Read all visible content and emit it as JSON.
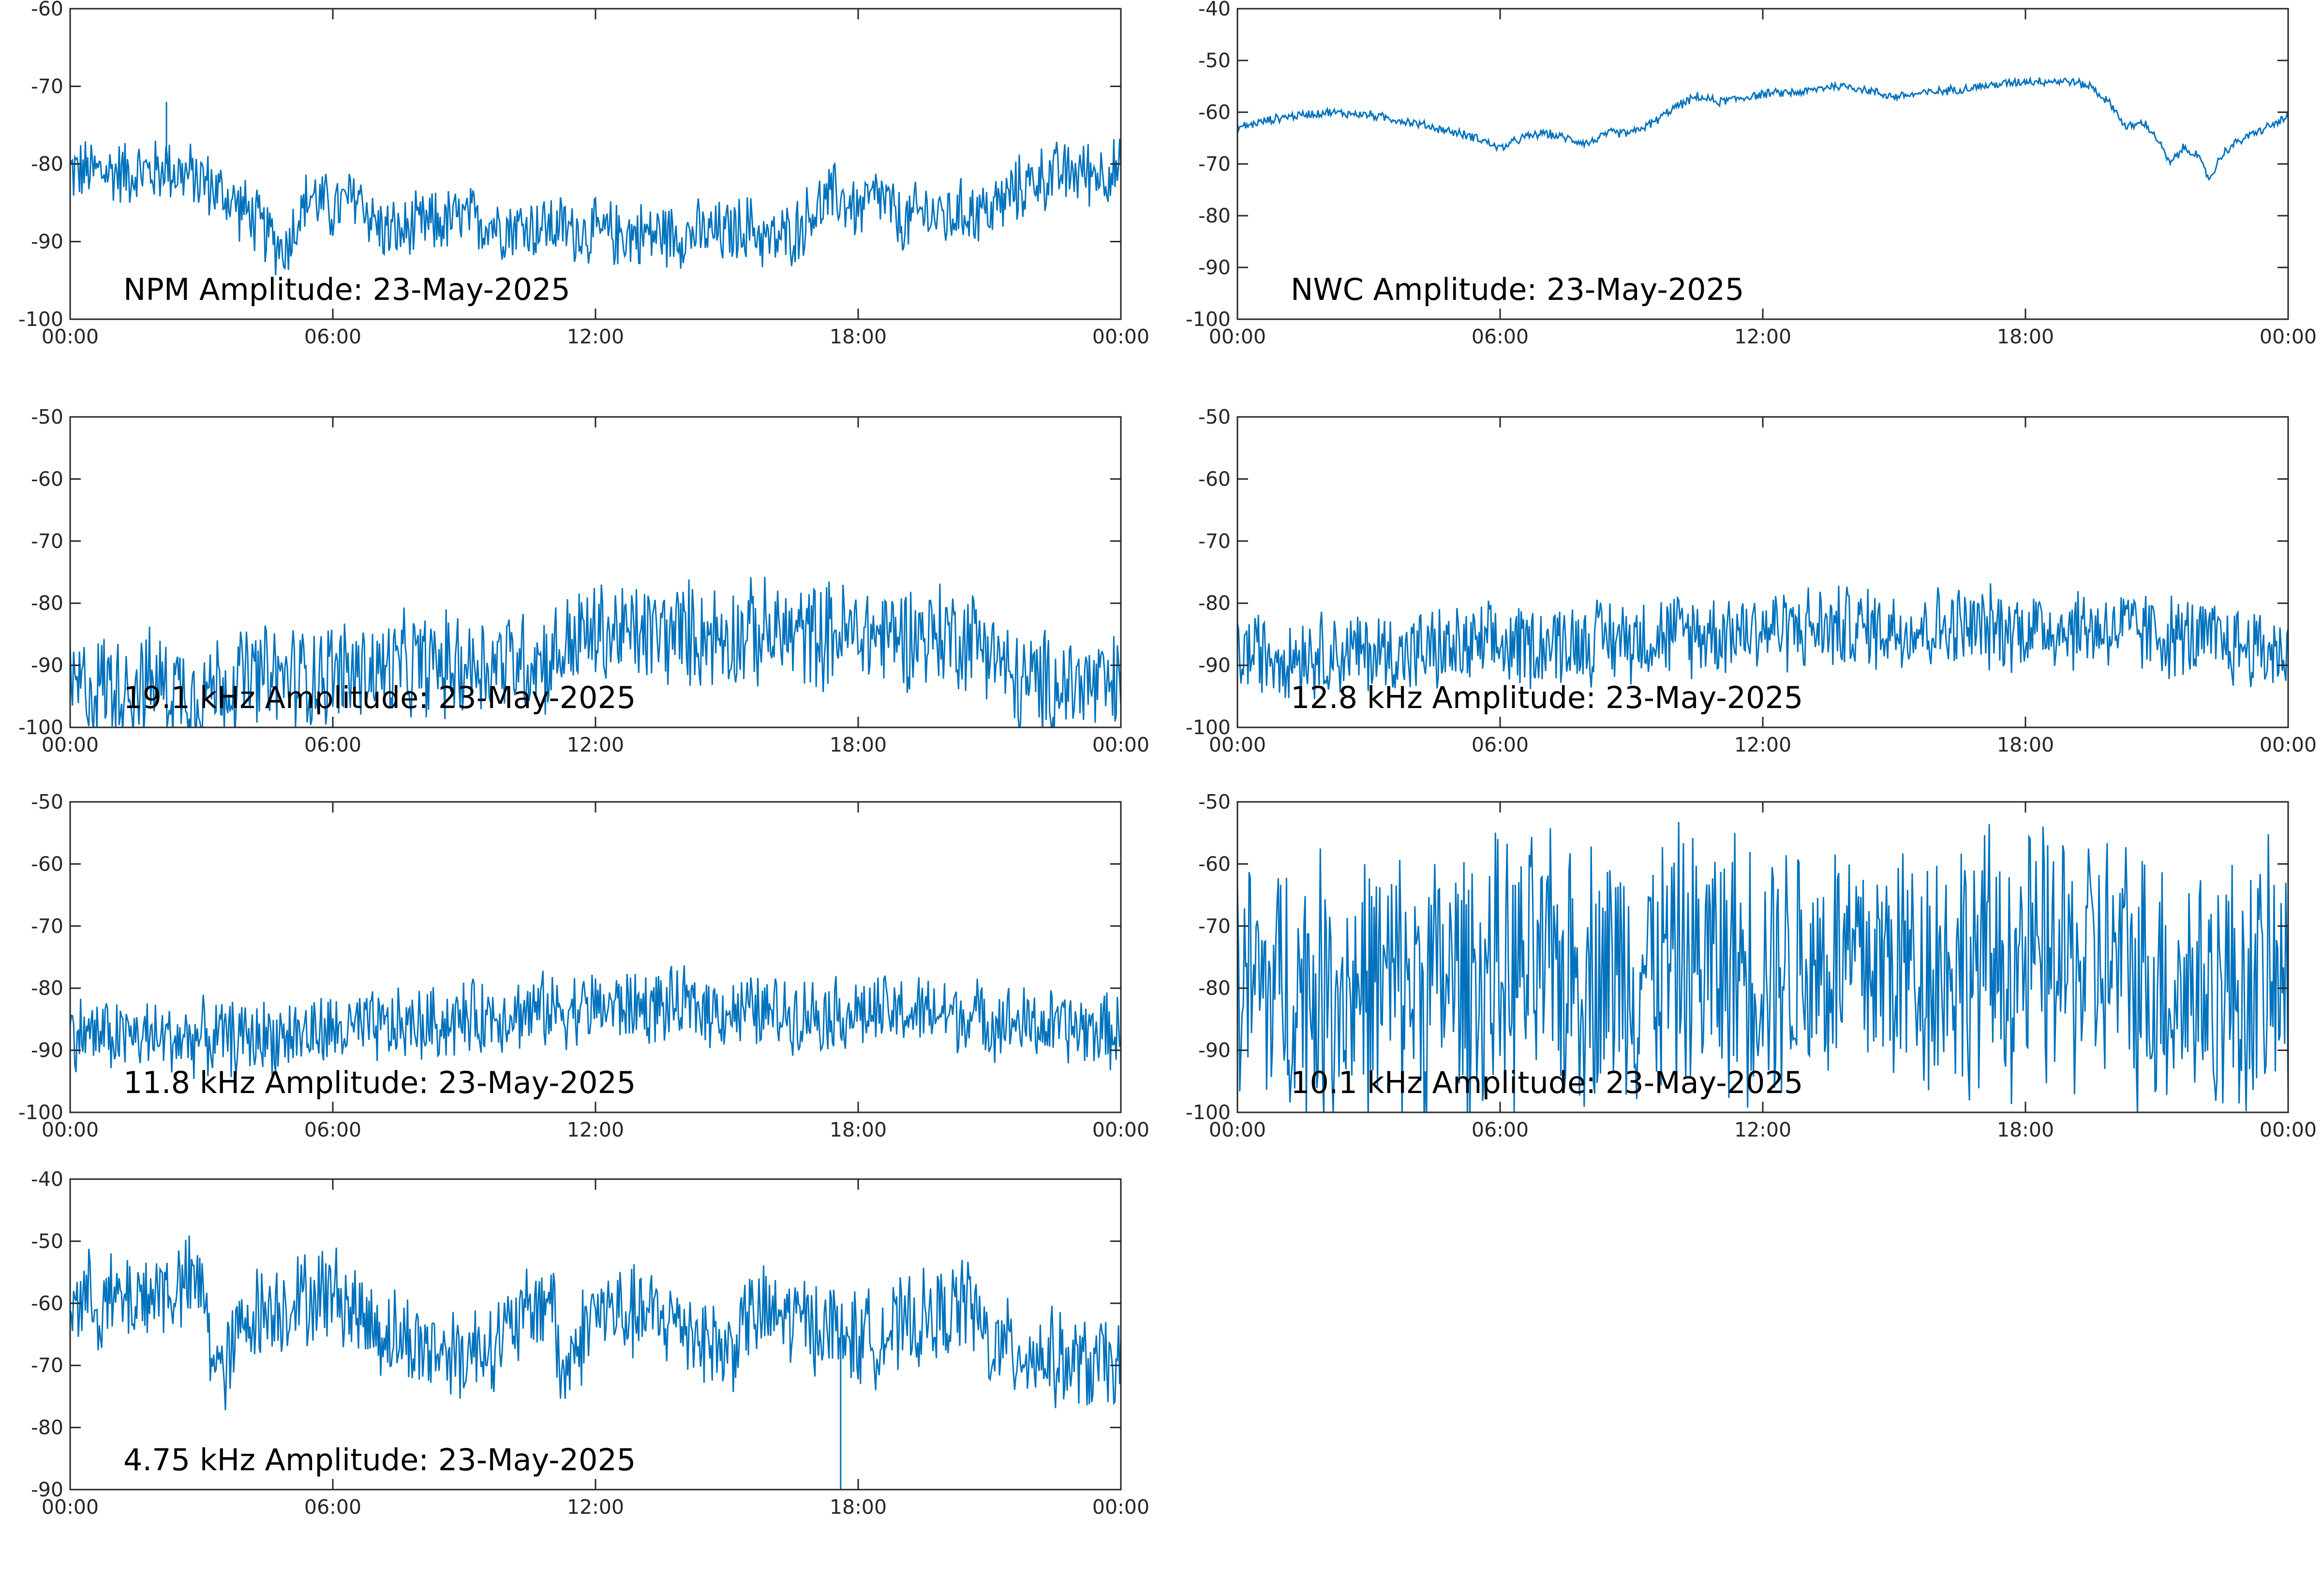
{
  "colors": {
    "line": "#0072BD",
    "axes": "#262626",
    "background": "#ffffff"
  },
  "chart_data": [
    {
      "type": "line",
      "annotation": "NPM Amplitude: 23-May-2025",
      "ylim": [
        -100,
        -60
      ],
      "yticks": [
        "-60",
        "-70",
        "-80",
        "-90",
        "-100"
      ],
      "xlim": [
        "00:00",
        "24:00"
      ],
      "xticks": [
        "00:00",
        "06:00",
        "12:00",
        "18:00",
        "00:00"
      ],
      "grid": false,
      "series": [
        {
          "x": [
            0,
            1,
            2,
            2.2,
            2.4,
            3,
            4,
            4.5,
            4.9,
            5.2,
            5.5,
            6,
            6.3,
            6.6,
            7,
            7.5,
            8,
            9,
            10,
            11,
            12,
            13,
            14,
            15,
            15.5,
            16,
            16.5,
            17,
            17.5,
            18,
            18.5,
            19,
            19.5,
            20,
            20.5,
            21,
            21.5,
            22,
            23,
            24
          ],
          "y": [
            -81,
            -81,
            -81,
            -80,
            -81,
            -82,
            -86,
            -89,
            -91,
            -87,
            -84,
            -86,
            -85,
            -84,
            -88,
            -89,
            -88,
            -87,
            -88,
            -88,
            -89,
            -89,
            -89,
            -89,
            -88,
            -90,
            -89,
            -86,
            -84,
            -86,
            -84,
            -88,
            -86,
            -87,
            -86,
            -86,
            -84,
            -82,
            -81,
            -81
          ],
          "noise": 5,
          "spikes": [
            {
              "x": 2.2,
              "y": -72
            }
          ]
        }
      ]
    },
    {
      "type": "line",
      "annotation": "NWC Amplitude: 23-May-2025",
      "ylim": [
        -100,
        -40
      ],
      "yticks": [
        "-40",
        "-50",
        "-60",
        "-70",
        "-80",
        "-90",
        "-100"
      ],
      "xlim": [
        "00:00",
        "24:00"
      ],
      "xticks": [
        "00:00",
        "06:00",
        "12:00",
        "18:00",
        "00:00"
      ],
      "grid": false,
      "series": [
        {
          "x": [
            0,
            1,
            2,
            3,
            4,
            5,
            5.5,
            6,
            6.5,
            7,
            7.5,
            8,
            8.5,
            9,
            9.5,
            10,
            10.5,
            11,
            12,
            13,
            13.5,
            14,
            15,
            16,
            17,
            18,
            19,
            19.5,
            20,
            20.3,
            20.7,
            21,
            21.3,
            21.6,
            21.9,
            22.2,
            22.5,
            22.8,
            23,
            23.5,
            24
          ],
          "y": [
            -63,
            -61,
            -60,
            -60.5,
            -62,
            -64,
            -65,
            -67,
            -65,
            -64,
            -65,
            -66,
            -64,
            -64,
            -62,
            -59,
            -57,
            -58,
            -56.5,
            -56,
            -55,
            -55,
            -57,
            -56,
            -55,
            -54,
            -54,
            -55,
            -59,
            -63,
            -62,
            -65,
            -70,
            -67,
            -68,
            -73,
            -68,
            -66,
            -65,
            -63,
            -61
          ],
          "noise": 1,
          "spikes": []
        }
      ]
    },
    {
      "type": "line",
      "annotation": "19.1 kHz Amplitude: 23-May-2025",
      "ylim": [
        -100,
        -50
      ],
      "yticks": [
        "-50",
        "-60",
        "-70",
        "-80",
        "-90",
        "-100"
      ],
      "xlim": [
        "00:00",
        "24:00"
      ],
      "xticks": [
        "00:00",
        "06:00",
        "12:00",
        "18:00",
        "00:00"
      ],
      "grid": false,
      "series": [
        {
          "x": [
            0,
            1,
            2,
            3,
            4,
            5,
            6,
            7,
            8,
            9,
            10,
            11,
            11.5,
            12,
            13,
            14,
            15,
            16,
            17,
            18,
            19,
            20,
            21,
            21.5,
            22,
            23,
            24
          ],
          "y": [
            -94,
            -93,
            -93,
            -94,
            -92,
            -92,
            -91,
            -91,
            -90,
            -90,
            -89,
            -89,
            -86,
            -85,
            -85,
            -85,
            -85,
            -85,
            -85,
            -85,
            -85,
            -85,
            -86,
            -93,
            -93,
            -93,
            -94
          ],
          "noise": 10,
          "spikes": []
        }
      ]
    },
    {
      "type": "line",
      "annotation": "12.8 kHz Amplitude: 23-May-2025",
      "ylim": [
        -100,
        -50
      ],
      "yticks": [
        "-50",
        "-60",
        "-70",
        "-80",
        "-90",
        "-100"
      ],
      "xlim": [
        "00:00",
        "24:00"
      ],
      "xticks": [
        "00:00",
        "06:00",
        "12:00",
        "18:00",
        "00:00"
      ],
      "grid": false,
      "series": [
        {
          "x": [
            0,
            2,
            4,
            6,
            8,
            10,
            12,
            14,
            16,
            18,
            20,
            22,
            24
          ],
          "y": [
            -88,
            -88,
            -88,
            -87,
            -86,
            -85,
            -84,
            -84,
            -84,
            -84,
            -84,
            -86,
            -88
          ],
          "noise": 8,
          "spikes": []
        }
      ]
    },
    {
      "type": "line",
      "annotation": "11.8 kHz Amplitude: 23-May-2025",
      "ylim": [
        -100,
        -50
      ],
      "yticks": [
        "-50",
        "-60",
        "-70",
        "-80",
        "-90",
        "-100"
      ],
      "xlim": [
        "00:00",
        "24:00"
      ],
      "xticks": [
        "00:00",
        "06:00",
        "12:00",
        "18:00",
        "00:00"
      ],
      "grid": false,
      "series": [
        {
          "x": [
            0,
            2,
            4,
            6,
            8,
            10,
            12,
            14,
            16,
            18,
            20,
            22,
            24
          ],
          "y": [
            -87,
            -88,
            -88,
            -87,
            -86,
            -84,
            -83,
            -83,
            -84,
            -84,
            -84,
            -86,
            -87
          ],
          "noise": 7,
          "spikes": []
        }
      ]
    },
    {
      "type": "line",
      "annotation": "10.1 kHz Amplitude: 23-May-2025",
      "ylim": [
        -100,
        -50
      ],
      "yticks": [
        "-50",
        "-60",
        "-70",
        "-80",
        "-90",
        "-100"
      ],
      "xlim": [
        "00:00",
        "24:00"
      ],
      "xticks": [
        "00:00",
        "06:00",
        "12:00",
        "18:00",
        "00:00"
      ],
      "grid": false,
      "series": [
        {
          "x": [
            0,
            2,
            4,
            6,
            8,
            10,
            12,
            14,
            16,
            18,
            20,
            21,
            22,
            24
          ],
          "y": [
            -80,
            -80,
            -79,
            -78,
            -77,
            -76,
            -76,
            -76,
            -76,
            -76,
            -76,
            -79,
            -80,
            -80
          ],
          "noise": 25,
          "spikes": []
        }
      ]
    },
    {
      "type": "line",
      "annotation": "4.75 kHz Amplitude: 23-May-2025",
      "ylim": [
        -90,
        -40
      ],
      "yticks": [
        "-40",
        "-50",
        "-60",
        "-70",
        "-80",
        "-90"
      ],
      "xlim": [
        "00:00",
        "24:00"
      ],
      "xticks": [
        "00:00",
        "06:00",
        "12:00",
        "18:00",
        "00:00"
      ],
      "grid": false,
      "series": [
        {
          "x": [
            0,
            1,
            2,
            3,
            3.2,
            3.5,
            4,
            5,
            6,
            7,
            8,
            9,
            10,
            11,
            11.2,
            12,
            13,
            14,
            15,
            15.5,
            16,
            17,
            18,
            19,
            20,
            20.5,
            21,
            22,
            23,
            24
          ],
          "y": [
            -59,
            -60,
            -58,
            -57,
            -66,
            -72,
            -62,
            -60,
            -58,
            -64,
            -67,
            -68,
            -65,
            -58,
            -72,
            -61,
            -62,
            -63,
            -68,
            -62,
            -62,
            -63,
            -66,
            -64,
            -62,
            -59,
            -67,
            -68,
            -70,
            -70
          ],
          "noise": 9,
          "spikes": [
            {
              "x": 17.6,
              "y": -90
            }
          ]
        }
      ]
    }
  ]
}
